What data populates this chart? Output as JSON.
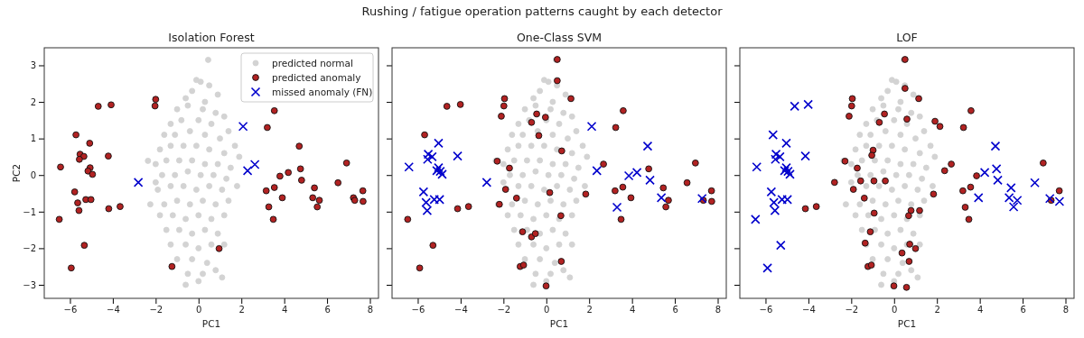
{
  "chart_data": [
    {
      "type": "scatter",
      "title": "Isolation Forest",
      "xlabel": "PC1",
      "ylabel": "PC2",
      "annotations": [
        "Rushing / fatigue operation patterns caught by each detector"
      ],
      "xlim": [
        -7.2,
        8.4
      ],
      "ylim": [
        -3.37,
        3.48
      ],
      "xticks": [
        -6,
        -4,
        -2,
        0,
        2,
        4,
        6,
        8
      ],
      "yticks": [
        -3,
        -2,
        -1,
        0,
        1,
        2,
        3
      ],
      "legend": "top right",
      "series": [
        {
          "name": "predicted normal",
          "color": "#d3d3d3",
          "marker": "circle",
          "x": [
            0.45,
            -0.1,
            0.1,
            0.5,
            -0.6,
            0.9,
            -0.3,
            0.3,
            -1.0,
            -0.5,
            0.2,
            0.8,
            1.2,
            -1.3,
            -0.8,
            0.0,
            0.6,
            1.4,
            -1.6,
            -1.1,
            -0.4,
            0.3,
            1.0,
            1.7,
            -1.8,
            -1.3,
            -0.7,
            -0.1,
            0.5,
            1.2,
            1.9,
            -2.0,
            -1.5,
            -0.9,
            -0.3,
            0.3,
            0.9,
            1.5,
            -2.36,
            -1.7,
            -1.1,
            -0.5,
            0.1,
            0.7,
            1.3,
            1.8,
            -1.9,
            -1.3,
            -0.7,
            -0.1,
            0.5,
            1.1,
            -1.6,
            -1.0,
            -0.4,
            0.2,
            0.8,
            1.4,
            -1.8,
            -1.2,
            -0.6,
            0.0,
            0.6,
            1.2,
            -2.25,
            -1.5,
            -0.9,
            -0.3,
            0.3,
            0.9,
            -1.3,
            -0.6,
            0.0,
            0.6,
            1.2,
            -1.0,
            -0.3,
            0.4,
            -0.5,
            0.2,
            0.8,
            -0.6,
            0.0,
            1.1,
            -2.0
          ],
          "values": [
            3.15,
            2.6,
            2.55,
            2.45,
            2.1,
            2.2,
            2.3,
            2.0,
            1.8,
            1.9,
            1.8,
            1.7,
            1.6,
            1.4,
            1.5,
            1.5,
            1.4,
            1.2,
            1.1,
            1.1,
            1.2,
            1.1,
            1.0,
            0.8,
            0.7,
            0.8,
            0.8,
            0.8,
            0.7,
            0.6,
            0.5,
            0.3,
            0.4,
            0.4,
            0.4,
            0.3,
            0.3,
            0.2,
            0.39,
            0.0,
            0.0,
            0.1,
            0.0,
            0.0,
            -0.1,
            -0.3,
            -0.4,
            -0.3,
            -0.3,
            -0.4,
            -0.3,
            -0.4,
            -0.8,
            -0.7,
            -0.8,
            -0.7,
            -0.8,
            -0.7,
            -1.1,
            -1.1,
            -1.2,
            -1.1,
            -1.2,
            -1.1,
            -0.8,
            -1.5,
            -1.5,
            -1.6,
            -1.5,
            -1.6,
            -1.9,
            -1.9,
            -2.0,
            -1.9,
            -1.9,
            -2.3,
            -2.3,
            -2.4,
            -2.7,
            -2.7,
            -2.6,
            -3.0,
            -2.9,
            -2.8,
            -0.2
          ]
        },
        {
          "name": "predicted anomaly",
          "color": "#b22222",
          "marker": "circle",
          "x": [
            -6.44,
            -5.72,
            -5.08,
            -5.53,
            -5.35,
            -5.56,
            -5.06,
            -5.16,
            -4.95,
            -4.21,
            -4.68,
            -4.08,
            -2.0,
            -2.03,
            -5.78,
            -5.64,
            -5.58,
            -5.26,
            -5.02,
            -4.19,
            -3.66,
            -6.5,
            -5.33,
            -5.94,
            -1.24,
            3.54,
            3.21,
            4.7,
            6.91,
            4.76,
            3.8,
            4.19,
            4.81,
            6.51,
            3.16,
            3.54,
            3.91,
            5.41,
            5.33,
            5.64,
            5.54,
            7.23,
            7.29,
            7.67,
            7.68,
            3.28,
            3.49,
            0.96
          ],
          "values": [
            0.22,
            1.1,
            0.87,
            0.57,
            0.51,
            0.43,
            0.2,
            0.11,
            0.02,
            0.52,
            1.88,
            1.92,
            2.07,
            1.89,
            -0.46,
            -0.76,
            -0.97,
            -0.67,
            -0.67,
            -0.92,
            -0.86,
            -1.21,
            -1.92,
            -2.54,
            -2.5,
            1.76,
            1.3,
            0.79,
            0.33,
            0.17,
            -0.03,
            0.07,
            -0.14,
            -0.21,
            -0.43,
            -0.34,
            -0.62,
            -0.35,
            -0.62,
            -0.69,
            -0.87,
            -0.62,
            -0.69,
            -0.43,
            -0.72,
            -0.87,
            -1.21,
            -2.01
          ]
        },
        {
          "name": "missed anomaly (FN)",
          "color": "#0000cc",
          "marker": "cross",
          "x": [
            -2.81,
            2.08,
            2.29,
            2.63
          ],
          "values": [
            -0.2,
            1.33,
            0.12,
            0.29
          ]
        }
      ]
    },
    {
      "type": "scatter",
      "title": "One-Class SVM",
      "xlabel": "PC1",
      "xlim": [
        -7.2,
        8.4
      ],
      "ylim": [
        -3.37,
        3.48
      ],
      "xticks": [
        -6,
        -4,
        -2,
        0,
        2,
        4,
        6,
        8
      ],
      "yticks": [
        -3,
        -2,
        -1,
        0,
        1,
        2,
        3
      ],
      "tick_labels": "x",
      "series": [
        {
          "color": "#d3d3d3",
          "marker": "circle",
          "x": [
            0.45,
            -0.1,
            0.1,
            0.5,
            -0.6,
            0.9,
            -0.3,
            0.3,
            -1.0,
            -0.5,
            0.2,
            0.8,
            1.2,
            -1.3,
            -0.8,
            0.0,
            0.6,
            1.4,
            -1.6,
            -1.1,
            -0.4,
            0.3,
            1.0,
            1.7,
            -1.8,
            -1.3,
            -0.7,
            -0.1,
            0.5,
            1.2,
            1.9,
            -2.0,
            -1.5,
            -0.9,
            -0.3,
            0.3,
            0.9,
            1.5,
            -2.36,
            -1.7,
            -1.1,
            -0.5,
            0.1,
            0.7,
            1.3,
            1.8,
            -1.9,
            -1.3,
            -0.7,
            -0.1,
            0.5,
            1.1,
            -1.6,
            -1.0,
            -0.4,
            0.2,
            0.8,
            1.4,
            -1.8,
            -1.2,
            -0.6,
            0.0,
            0.6,
            1.2,
            -2.25,
            -1.5,
            -0.9,
            -0.3,
            0.3,
            0.9,
            -1.3,
            -0.6,
            0.0,
            0.6,
            1.2,
            -1.0,
            -0.3,
            0.4,
            -0.5,
            0.2,
            0.8,
            -0.6,
            0.0,
            1.1,
            -2.0
          ],
          "values": [
            3.15,
            2.6,
            2.55,
            2.45,
            2.1,
            2.2,
            2.3,
            2.0,
            1.8,
            1.9,
            1.8,
            1.7,
            1.6,
            1.4,
            1.5,
            1.5,
            1.4,
            1.2,
            1.1,
            1.1,
            1.2,
            1.1,
            1.0,
            0.8,
            0.7,
            0.8,
            0.8,
            0.8,
            0.7,
            0.6,
            0.5,
            0.3,
            0.4,
            0.4,
            0.4,
            0.3,
            0.3,
            0.2,
            0.39,
            0.0,
            0.0,
            0.1,
            0.0,
            0.0,
            -0.1,
            -0.3,
            -0.4,
            -0.3,
            -0.3,
            -0.4,
            -0.3,
            -0.4,
            -0.8,
            -0.7,
            -0.8,
            -0.7,
            -0.8,
            -0.7,
            -1.1,
            -1.1,
            -1.2,
            -1.1,
            -1.2,
            -1.1,
            -0.8,
            -1.5,
            -1.5,
            -1.6,
            -1.5,
            -1.6,
            -1.9,
            -1.9,
            -2.0,
            -1.9,
            -1.9,
            -2.3,
            -2.3,
            -2.4,
            -2.7,
            -2.7,
            -2.6,
            -3.0,
            -2.9,
            -2.8,
            -0.2
          ]
        },
        {
          "color": "#b22222",
          "marker": "circle",
          "x": [
            0.51,
            0.51,
            -1.95,
            -1.98,
            -2.1,
            -0.45,
            -0.04,
            -0.69,
            -0.35,
            -4.64,
            -4.01,
            -5.68,
            -2.29,
            -1.72,
            -1.9,
            0.16,
            -1.39,
            -2.19,
            -4.14,
            -3.63,
            -6.47,
            -5.29,
            -5.91,
            -1.11,
            -0.69,
            -0.51,
            -1.22,
            -1.06,
            -0.01,
            0.72,
            0.68,
            0.7,
            1.15,
            3.59,
            3.24,
            2.67,
            4.78,
            3.57,
            3.21,
            3.95,
            1.84,
            5.46,
            5.7,
            5.58,
            3.49,
            6.96,
            6.57,
            7.71,
            7.72,
            7.33
          ],
          "values": [
            3.16,
            2.58,
            2.09,
            1.89,
            1.61,
            1.67,
            1.58,
            1.44,
            1.08,
            1.88,
            1.93,
            1.1,
            0.38,
            0.19,
            -0.39,
            -0.48,
            -0.63,
            -0.8,
            -0.92,
            -0.86,
            -1.21,
            -1.92,
            -2.54,
            -1.55,
            -1.69,
            -1.6,
            -2.5,
            -2.46,
            -3.03,
            0.66,
            -1.11,
            -2.36,
            2.09,
            1.76,
            1.3,
            0.3,
            0.17,
            -0.33,
            -0.43,
            -0.62,
            -0.52,
            -0.35,
            -0.69,
            -0.87,
            -1.21,
            0.33,
            -0.21,
            -0.43,
            -0.72,
            -0.69
          ]
        },
        {
          "color": "#0000cc",
          "marker": "cross",
          "x": [
            -6.41,
            -5.03,
            -5.51,
            -5.33,
            -5.54,
            -4.14,
            -5.03,
            -4.95,
            -4.86,
            -5.11,
            -5.73,
            -5.61,
            -5.56,
            -5.23,
            -4.98,
            -2.78,
            2.12,
            2.36,
            4.73,
            3.85,
            4.23,
            4.84,
            3.3,
            5.37,
            7.27
          ],
          "values": [
            0.22,
            0.87,
            0.57,
            0.5,
            0.43,
            0.52,
            0.2,
            0.1,
            0.02,
            0.12,
            -0.46,
            -0.75,
            -0.97,
            -0.67,
            -0.67,
            -0.2,
            1.33,
            0.12,
            0.79,
            -0.02,
            0.07,
            -0.14,
            -0.88,
            -0.62,
            -0.64
          ]
        }
      ]
    },
    {
      "type": "scatter",
      "title": "LOF",
      "xlabel": "PC1",
      "xlim": [
        -7.2,
        8.4
      ],
      "ylim": [
        -3.37,
        3.48
      ],
      "xticks": [
        -6,
        -4,
        -2,
        0,
        2,
        4,
        6,
        8
      ],
      "yticks": [
        -3,
        -2,
        -1,
        0,
        1,
        2,
        3
      ],
      "tick_labels": "x",
      "series": [
        {
          "color": "#d3d3d3",
          "marker": "circle",
          "x": [
            0.45,
            -0.1,
            0.1,
            0.5,
            -0.6,
            0.9,
            -0.3,
            0.3,
            -1.0,
            -0.5,
            0.2,
            0.8,
            1.2,
            -1.3,
            -0.8,
            0.0,
            0.6,
            1.4,
            -1.6,
            -1.1,
            -0.4,
            0.3,
            1.0,
            1.7,
            -1.8,
            -1.3,
            -0.7,
            -0.1,
            0.5,
            1.2,
            1.9,
            -2.0,
            -1.5,
            -0.9,
            -0.3,
            0.3,
            0.9,
            1.5,
            -2.36,
            -1.7,
            -1.1,
            -0.5,
            0.1,
            0.7,
            1.3,
            1.8,
            -1.9,
            -1.3,
            -0.7,
            -0.1,
            0.5,
            1.1,
            -1.6,
            -1.0,
            -0.4,
            0.2,
            0.8,
            1.4,
            -1.8,
            -1.2,
            -0.6,
            0.0,
            0.6,
            1.2,
            -2.25,
            -1.5,
            -0.9,
            -0.3,
            0.3,
            0.9,
            -1.3,
            -0.6,
            0.0,
            0.6,
            1.2,
            -1.0,
            -0.3,
            0.4,
            -0.5,
            0.2,
            0.8,
            -0.6,
            0.0,
            1.1,
            -2.0
          ],
          "values": [
            3.15,
            2.6,
            2.55,
            2.45,
            2.1,
            2.2,
            2.3,
            2.0,
            1.8,
            1.9,
            1.8,
            1.7,
            1.6,
            1.4,
            1.5,
            1.5,
            1.4,
            1.2,
            1.1,
            1.1,
            1.2,
            1.1,
            1.0,
            0.8,
            0.7,
            0.8,
            0.8,
            0.8,
            0.7,
            0.6,
            0.5,
            0.3,
            0.4,
            0.4,
            0.4,
            0.3,
            0.3,
            0.2,
            0.39,
            0.0,
            0.0,
            0.1,
            0.0,
            0.0,
            -0.1,
            -0.3,
            -0.4,
            -0.3,
            -0.3,
            -0.4,
            -0.3,
            -0.4,
            -0.8,
            -0.7,
            -0.8,
            -0.7,
            -0.8,
            -0.7,
            -1.1,
            -1.1,
            -1.2,
            -1.1,
            -1.2,
            -1.1,
            -0.8,
            -1.5,
            -1.5,
            -1.6,
            -1.5,
            -1.6,
            -1.9,
            -1.9,
            -2.0,
            -1.9,
            -1.9,
            -2.3,
            -2.3,
            -2.4,
            -2.7,
            -2.7,
            -2.6,
            -3.0,
            -2.9,
            -2.8,
            -0.2
          ]
        },
        {
          "color": "#b22222",
          "marker": "circle",
          "x": [
            0.51,
            0.51,
            -1.95,
            -1.98,
            -2.1,
            -0.45,
            -0.69,
            0.6,
            -0.98,
            -1.04,
            -2.29,
            -1.72,
            -2.78,
            -1.56,
            -0.94,
            -0.41,
            -1.9,
            -1.39,
            -0.93,
            -4.14,
            -3.63,
            -1.11,
            -1.35,
            0.37,
            -1.22,
            -1.06,
            -0.01,
            0.58,
            1.15,
            1.91,
            2.14,
            3.24,
            3.59,
            2.67,
            2.36,
            3.85,
            3.57,
            3.21,
            1.84,
            3.32,
            3.49,
            0.79,
            1.19,
            0.68,
            0.73,
            1.0,
            0.7,
            6.96,
            7.71,
            7.33
          ],
          "values": [
            3.16,
            2.37,
            2.09,
            1.89,
            1.61,
            1.67,
            1.44,
            1.53,
            0.68,
            0.54,
            0.38,
            0.19,
            -0.2,
            -0.16,
            -0.16,
            -0.16,
            -0.39,
            -0.63,
            -1.04,
            -0.92,
            -0.86,
            -1.55,
            -1.86,
            -2.13,
            -2.5,
            -2.46,
            -3.03,
            -3.07,
            2.09,
            1.47,
            1.33,
            1.3,
            1.76,
            0.3,
            0.12,
            -0.02,
            -0.33,
            -0.43,
            -0.52,
            -0.88,
            -1.21,
            -0.97,
            -0.97,
            -1.11,
            -1.89,
            -2.01,
            -2.36,
            0.33,
            -0.43,
            -0.69
          ]
        },
        {
          "color": "#0000cc",
          "marker": "cross",
          "x": [
            -4.64,
            -4.01,
            -5.65,
            -5.03,
            -5.51,
            -5.33,
            -5.54,
            -4.14,
            -6.41,
            -5.03,
            -4.95,
            -4.86,
            -5.11,
            -5.73,
            -5.61,
            -5.56,
            -5.23,
            -4.98,
            -6.47,
            -5.29,
            -5.91,
            4.73,
            4.23,
            4.78,
            4.84,
            3.94,
            5.46,
            5.37,
            5.75,
            5.58,
            6.57,
            7.27,
            7.72
          ],
          "values": [
            1.88,
            1.93,
            1.1,
            0.87,
            0.57,
            0.5,
            0.43,
            0.52,
            0.22,
            0.2,
            0.1,
            0.02,
            0.12,
            -0.46,
            -0.75,
            -0.97,
            -0.67,
            -0.67,
            -1.21,
            -1.92,
            -2.54,
            0.79,
            0.07,
            0.17,
            -0.14,
            -0.62,
            -0.35,
            -0.62,
            -0.69,
            -0.87,
            -0.21,
            -0.64,
            -0.72
          ]
        }
      ]
    }
  ]
}
